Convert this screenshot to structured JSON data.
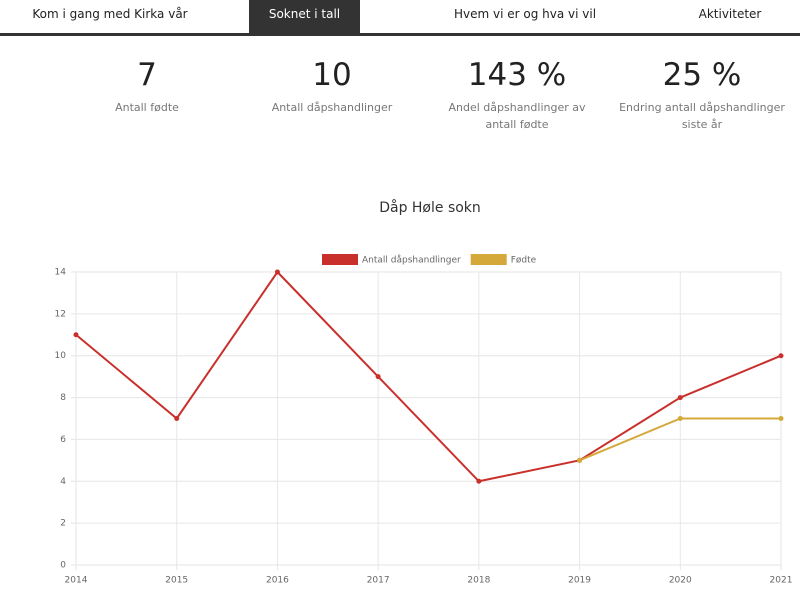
{
  "nav": {
    "tabs": [
      "Kom i gang med Kirka vår",
      "Soknet i tall",
      "Hvem vi er og hva vi vil",
      "Aktiviteter"
    ],
    "active": 1
  },
  "stats": [
    {
      "value": "7",
      "label": "Antall fødte"
    },
    {
      "value": "10",
      "label": "Antall dåpshandlinger"
    },
    {
      "value": "143 %",
      "label": "Andel dåpshandlinger av antall fødte"
    },
    {
      "value": "25 %",
      "label": "Endring antall dåpshandlinger siste år"
    }
  ],
  "chart_data": {
    "type": "line",
    "title": "Dåp Høle sokn",
    "categories": [
      "2014",
      "2015",
      "2016",
      "2017",
      "2018",
      "2019",
      "2020",
      "2021"
    ],
    "series": [
      {
        "name": "Antall dåpshandlinger",
        "color": "#c9302c",
        "values": [
          11,
          7,
          14,
          9,
          4,
          5,
          8,
          10
        ]
      },
      {
        "name": "Fødte",
        "color": "#d4a93a",
        "values": [
          null,
          null,
          null,
          null,
          null,
          5,
          7,
          7
        ]
      }
    ],
    "ylim": [
      0,
      14
    ],
    "yticks": [
      0,
      2,
      4,
      6,
      8,
      10,
      12,
      14
    ],
    "grid": true,
    "legend": "top"
  }
}
